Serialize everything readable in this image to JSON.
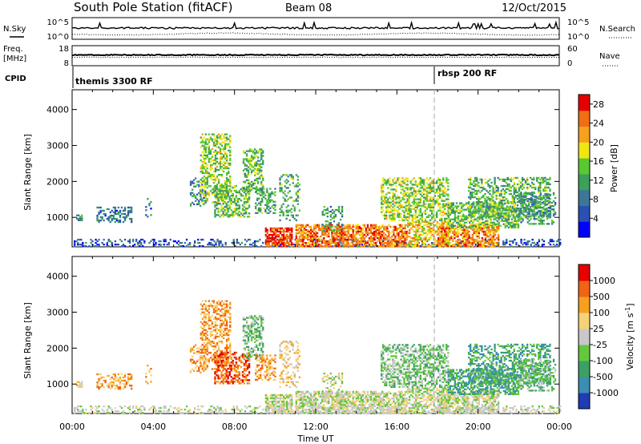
{
  "header": {
    "station": "South Pole Station (fitACF)",
    "beam": "Beam 08",
    "date": "12/Oct/2015"
  },
  "noise_panel": {
    "left_label": "N.Sky",
    "right_label": "N.Search",
    "left_ticks": [
      "10^5",
      "10^0"
    ],
    "right_ticks": [
      "10^5",
      "10^0"
    ]
  },
  "freq_panel": {
    "left_label_1": "Freq.",
    "left_label_2": "[MHz]",
    "right_label": "Nave",
    "left_ticks": [
      "18",
      "8"
    ],
    "right_ticks": [
      "60",
      "0"
    ]
  },
  "cpid_panel": {
    "label": "CPID",
    "modes": [
      {
        "name": "themis 3300 RF",
        "start_hour": 0
      },
      {
        "name": "rbsp 200 RF",
        "start_hour": 18
      }
    ]
  },
  "chart_data": [
    {
      "type": "heatmap",
      "title": "",
      "ylabel": "Slant Range [km]",
      "xlabel": "Time UT",
      "x_ticks": [
        "00:00",
        "04:00",
        "08:00",
        "12:00",
        "16:00",
        "20:00",
        "00:00"
      ],
      "y_ticks": [
        1000,
        2000,
        3000,
        4000
      ],
      "xlim_hours": [
        0,
        24
      ],
      "ylim_km": [
        180,
        4550
      ],
      "colorbar": {
        "label": "Power [dB]",
        "ticks": [
          4,
          8,
          12,
          16,
          20,
          24,
          28
        ],
        "range": [
          0,
          30
        ],
        "colors": [
          "#0000ff",
          "#2a50b4",
          "#3c7896",
          "#3ca05a",
          "#5ac832",
          "#f0e614",
          "#f5a01e",
          "#f06e14",
          "#e60000"
        ]
      }
    },
    {
      "type": "heatmap",
      "title": "",
      "ylabel": "Slant Range [km]",
      "xlabel": "Time UT",
      "x_ticks": [
        "00:00",
        "04:00",
        "08:00",
        "12:00",
        "16:00",
        "20:00",
        "00:00"
      ],
      "y_ticks": [
        1000,
        2000,
        3000,
        4000
      ],
      "xlim_hours": [
        0,
        24
      ],
      "ylim_km": [
        180,
        4550
      ],
      "colorbar": {
        "label": "Velocity [m s^-1]",
        "ticks": [
          "1000",
          "500",
          "100",
          "25",
          "-25",
          "-100",
          "-500",
          "-1000"
        ],
        "colors": [
          "#1e3cb4",
          "#3c8cb4",
          "#3ca064",
          "#64c83c",
          "#c8c8c8",
          "#f5d278",
          "#f5a01e",
          "#f06414",
          "#e60000"
        ]
      }
    }
  ]
}
